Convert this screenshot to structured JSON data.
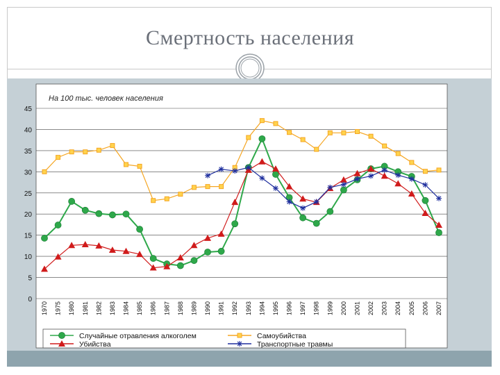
{
  "slide": {
    "title": "Смертность населения"
  },
  "chart_data": {
    "type": "line",
    "subtitle": "На 100 тыс. человек населения",
    "x": [
      "1970",
      "1975",
      "1980",
      "1981",
      "1982",
      "1983",
      "1984",
      "1985",
      "1986",
      "1987",
      "1988",
      "1989",
      "1990",
      "1991",
      "1992",
      "1993",
      "1994",
      "1995",
      "1996",
      "1997",
      "1998",
      "1999",
      "2000",
      "2001",
      "2002",
      "2003",
      "2004",
      "2005",
      "2006",
      "2007"
    ],
    "ylim": [
      0,
      45
    ],
    "yticks": [
      0,
      5,
      10,
      15,
      20,
      25,
      30,
      35,
      40,
      45
    ],
    "grid": "horizontal",
    "legend_position": "bottom",
    "series": [
      {
        "name": "Случайные отравления алкоголем",
        "color": "#2ea84a",
        "marker": "circle",
        "values": [
          14.3,
          17.4,
          23.0,
          20.9,
          20.1,
          19.8,
          20.0,
          16.4,
          9.5,
          8.2,
          7.8,
          9.0,
          11.0,
          11.2,
          17.7,
          31.0,
          37.8,
          29.4,
          23.9,
          19.1,
          17.8,
          20.6,
          25.7,
          28.1,
          30.7,
          31.3,
          30.0,
          28.9,
          23.2,
          15.6
        ]
      },
      {
        "name": "Самоубийства",
        "color": "#f5a623",
        "marker": "square",
        "values": [
          30.0,
          33.4,
          34.7,
          34.7,
          35.1,
          36.2,
          31.7,
          31.3,
          23.2,
          23.6,
          24.7,
          26.3,
          26.5,
          26.5,
          31.0,
          38.1,
          42.1,
          41.4,
          39.3,
          37.6,
          35.3,
          39.2,
          39.2,
          39.5,
          38.4,
          36.1,
          34.3,
          32.2,
          30.1,
          30.4
        ]
      },
      {
        "name": "Убийства",
        "color": "#d01b1b",
        "marker": "triangle",
        "values": [
          7.0,
          9.9,
          12.6,
          12.8,
          12.5,
          11.5,
          11.2,
          10.5,
          7.3,
          7.6,
          9.7,
          12.6,
          14.3,
          15.3,
          22.8,
          30.4,
          32.4,
          30.7,
          26.5,
          23.6,
          22.8,
          26.1,
          28.1,
          29.6,
          30.7,
          29.0,
          27.2,
          24.8,
          20.2,
          17.4
        ]
      },
      {
        "name": "Транспортные травмы",
        "color": "#1f2f9e",
        "marker": "asterisk",
        "values": [
          null,
          null,
          null,
          null,
          null,
          null,
          null,
          null,
          null,
          null,
          null,
          null,
          29.1,
          30.6,
          30.2,
          31.0,
          28.5,
          26.1,
          22.9,
          21.4,
          22.9,
          26.3,
          27.0,
          28.3,
          29.0,
          30.4,
          29.2,
          28.3,
          26.9,
          23.7
        ]
      }
    ]
  }
}
